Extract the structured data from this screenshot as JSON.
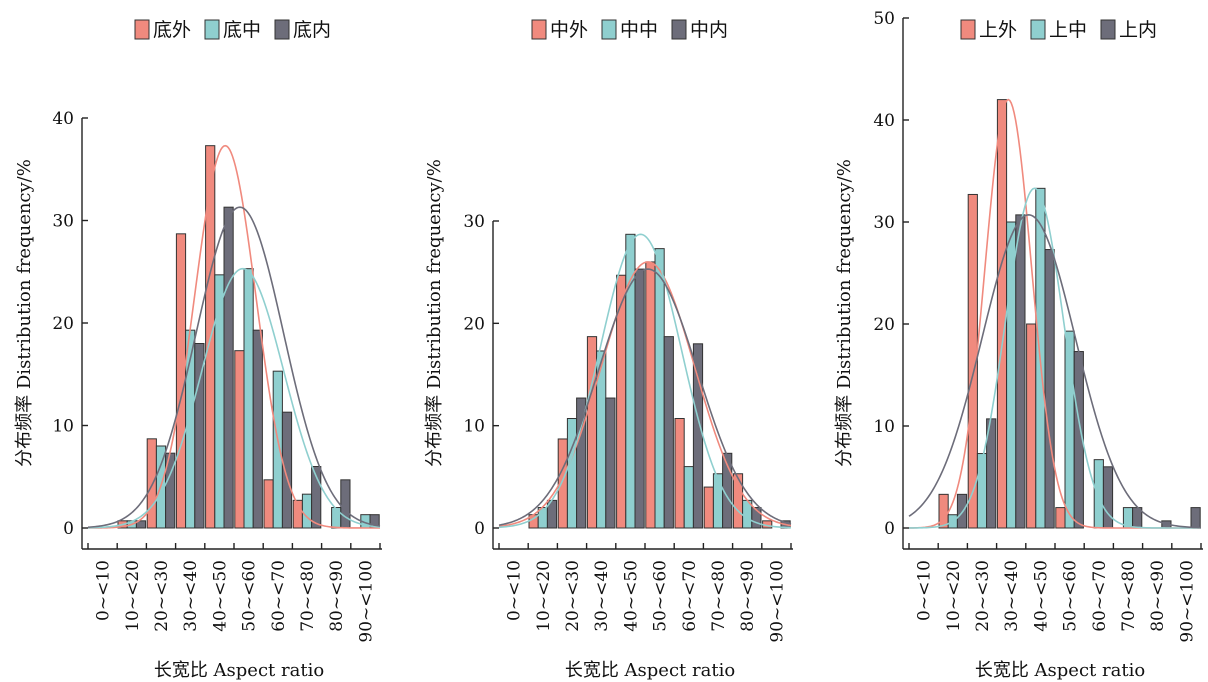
{
  "chart_data": [
    {
      "type": "bar",
      "xlabel": "长宽比 Aspect ratio",
      "ylabel": "分布频率 Distribution frequency/%",
      "ylim": [
        0,
        40
      ],
      "yticks": [
        0,
        10,
        20,
        30,
        40
      ],
      "categories": [
        "0~<10",
        "10~<20",
        "20~<30",
        "30~<40",
        "40~<50",
        "50~<60",
        "60~<70",
        "70~<80",
        "80~<90",
        "90~<100"
      ],
      "legend_position": "top-center",
      "fitted_curves": true,
      "series": [
        {
          "name": "底外",
          "color": "#F08A7E",
          "values": [
            0,
            0.7,
            8.7,
            28.7,
            37.3,
            17.3,
            4.7,
            2.7,
            0,
            0
          ],
          "curve": {
            "mean": 47,
            "sd": 10.5
          }
        },
        {
          "name": "底中",
          "color": "#8FCFCF",
          "values": [
            0,
            0.7,
            8.0,
            19.3,
            24.7,
            25.3,
            15.3,
            3.3,
            2.0,
            1.3
          ],
          "curve": {
            "mean": 53,
            "sd": 14
          }
        },
        {
          "name": "底内",
          "color": "#6D6D7A",
          "values": [
            0,
            0.7,
            7.3,
            18.0,
            31.3,
            19.3,
            11.3,
            6.0,
            4.7,
            1.3
          ],
          "curve": {
            "mean": 52,
            "sd": 15
          }
        }
      ]
    },
    {
      "type": "bar",
      "xlabel": "长宽比 Aspect ratio",
      "ylabel": "分布频率 Distribution frequency/%",
      "ylim": [
        0,
        30
      ],
      "yticks": [
        0,
        10,
        20,
        30
      ],
      "categories": [
        "0~<10",
        "10~<20",
        "20~<30",
        "30~<40",
        "40~<50",
        "50~<60",
        "60~<70",
        "70~<80",
        "80~<90",
        "90~<100"
      ],
      "legend_position": "top-center",
      "fitted_curves": true,
      "series": [
        {
          "name": "中外",
          "color": "#F08A7E",
          "values": [
            0,
            1.3,
            8.7,
            18.7,
            24.7,
            26.0,
            10.7,
            4.0,
            5.3,
            0.7
          ],
          "curve": {
            "mean": 51,
            "sd": 16
          }
        },
        {
          "name": "中中",
          "color": "#8FCFCF",
          "values": [
            0,
            2.0,
            10.7,
            17.3,
            28.7,
            27.3,
            6.0,
            5.3,
            2.7,
            0
          ],
          "curve": {
            "mean": 48.5,
            "sd": 14
          }
        },
        {
          "name": "中内",
          "color": "#6D6D7A",
          "values": [
            0,
            2.7,
            12.7,
            12.7,
            25.3,
            18.7,
            18.0,
            7.3,
            2.0,
            0.7
          ],
          "curve": {
            "mean": 51,
            "sd": 17
          }
        }
      ]
    },
    {
      "type": "bar",
      "xlabel": "长宽比 Aspect ratio",
      "ylabel": "分布频率 Distribution frequency/%",
      "ylim": [
        0,
        50
      ],
      "yticks": [
        0,
        10,
        20,
        30,
        40,
        50
      ],
      "categories": [
        "0~<10",
        "10~<20",
        "20~<30",
        "30~<40",
        "40~<50",
        "50~<60",
        "60~<70",
        "70~<80",
        "80~<90",
        "90~<100"
      ],
      "legend_position": "top-center",
      "fitted_curves": true,
      "series": [
        {
          "name": "上外",
          "color": "#F08A7E",
          "values": [
            0,
            3.3,
            32.7,
            42.0,
            20.0,
            2.0,
            0,
            0,
            0,
            0
          ],
          "curve": {
            "mean": 34,
            "sd": 8
          }
        },
        {
          "name": "上中",
          "color": "#8FCFCF",
          "values": [
            0,
            1.3,
            7.3,
            30.0,
            33.3,
            19.3,
            6.7,
            2.0,
            0,
            0
          ],
          "curve": {
            "mean": 43,
            "sd": 10
          }
        },
        {
          "name": "上内",
          "color": "#6D6D7A",
          "values": [
            0,
            3.3,
            10.7,
            30.7,
            27.3,
            17.3,
            6.0,
            2.0,
            0.7,
            2.0
          ],
          "curve": {
            "mean": 41,
            "sd": 16
          }
        }
      ]
    }
  ]
}
